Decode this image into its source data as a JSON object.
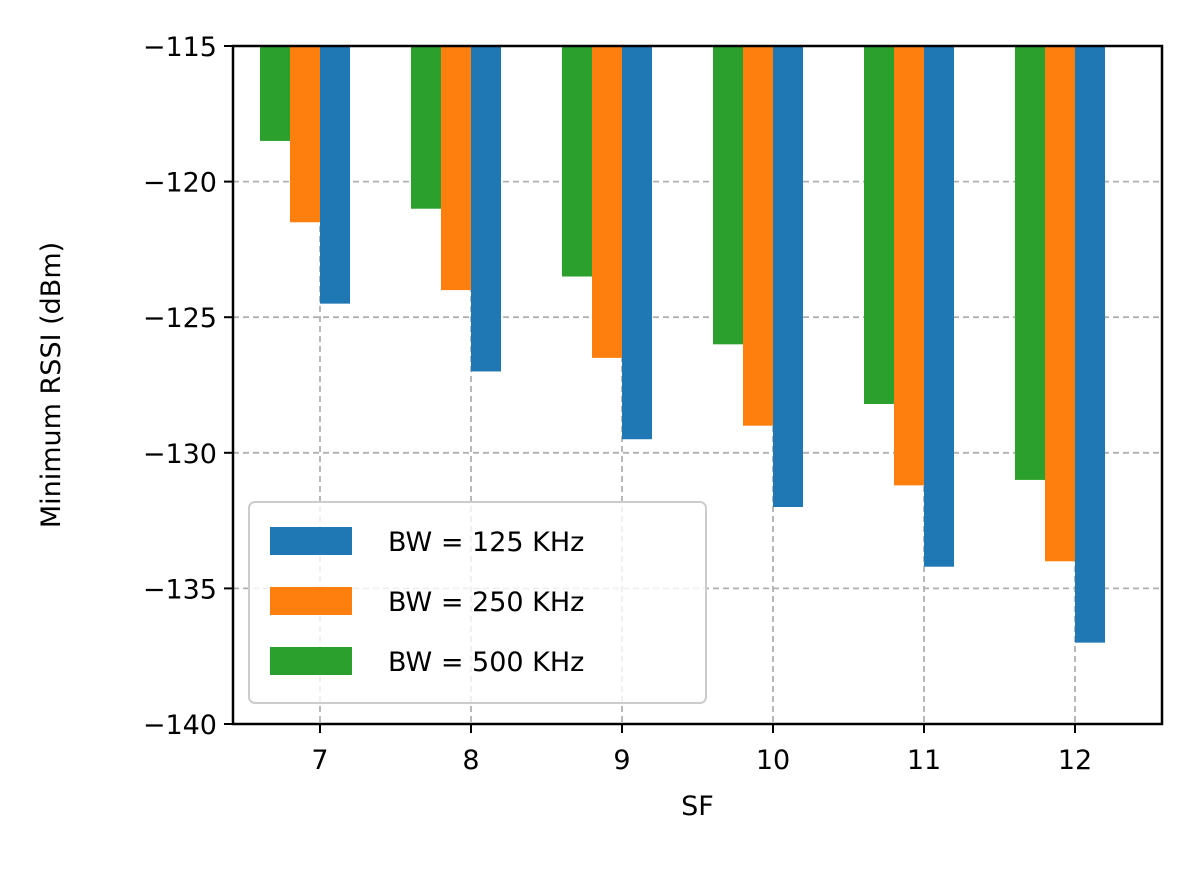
{
  "chart_data": {
    "type": "bar",
    "title": "",
    "xlabel": "SF",
    "ylabel": "Minimum RSSI (dBm)",
    "categories": [
      "7",
      "8",
      "9",
      "10",
      "11",
      "12"
    ],
    "ylim": [
      -140,
      -115
    ],
    "yticks": [
      -115,
      -120,
      -125,
      -130,
      -135,
      -140
    ],
    "ytick_labels": [
      "−115",
      "−120",
      "−125",
      "−130",
      "−135",
      "−140"
    ],
    "grid": true,
    "legend_position": "lower-left",
    "series": [
      {
        "name": "BW = 125 KHz",
        "color": "#1f77b4",
        "values": [
          -124.5,
          -127,
          -129.5,
          -132,
          -134.2,
          -137
        ]
      },
      {
        "name": "BW = 250 KHz",
        "color": "#ff7f0e",
        "values": [
          -121.5,
          -124,
          -126.5,
          -129,
          -131.2,
          -134
        ]
      },
      {
        "name": "BW = 500 KHz",
        "color": "#2ca02c",
        "values": [
          -118.5,
          -121,
          -123.5,
          -126,
          -128.2,
          -131
        ]
      }
    ],
    "legend_order": [
      0,
      1,
      2
    ],
    "bar_draw_order": [
      2,
      1,
      0
    ]
  }
}
